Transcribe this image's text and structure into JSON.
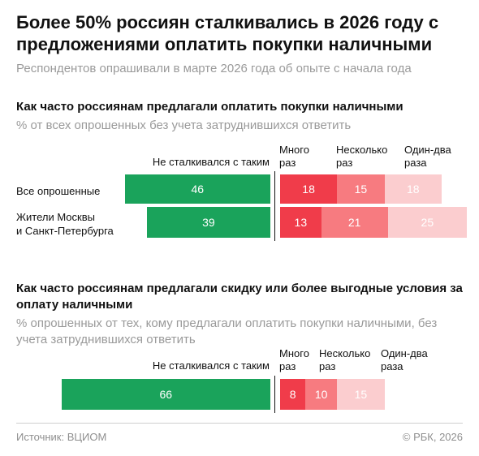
{
  "title": "Более 50% россиян сталкивались в 2026 году с предложениями оплатить покупки наличными",
  "subtitle": "Респондентов опрашивали в марте 2026 года об опыте с начала года",
  "colors": {
    "never": "#1aa35b",
    "many": "#f03c4a",
    "several": "#f77b80",
    "one_two": "#fbcdcf"
  },
  "chart_data": [
    {
      "type": "bar",
      "orientation": "horizontal",
      "stacked": true,
      "title": "Как часто россиянам предлагали оплатить покупки наличными",
      "subtitle": "% от всех опрошенных без учета затруднившихся ответить",
      "categories": [
        "Все опрошенные",
        "Жители Москвы\nи Санкт-Петербурга"
      ],
      "series": [
        {
          "name": "Не сталкивался с таким",
          "values": [
            46,
            39
          ]
        },
        {
          "name": "Много раз",
          "values": [
            18,
            13
          ]
        },
        {
          "name": "Несколько раз",
          "values": [
            15,
            21
          ]
        },
        {
          "name": "Один-два раза",
          "values": [
            18,
            25
          ]
        }
      ]
    },
    {
      "type": "bar",
      "orientation": "horizontal",
      "stacked": true,
      "title": "Как часто россиянам предлагали скидку или более выгодные условия за оплату наличными",
      "subtitle": "% опрошенных от тех, кому предлагали оплатить покупки наличными, без учета затруднившихся ответить",
      "categories": [
        ""
      ],
      "series": [
        {
          "name": "Не сталкивался с таким",
          "values": [
            66
          ]
        },
        {
          "name": "Много раз",
          "values": [
            8
          ]
        },
        {
          "name": "Несколько раз",
          "values": [
            10
          ]
        },
        {
          "name": "Один-два раза",
          "values": [
            15
          ]
        }
      ]
    }
  ],
  "footer": {
    "source": "Источник: ВЦИОМ",
    "copyright": "© РБК, 2026"
  }
}
